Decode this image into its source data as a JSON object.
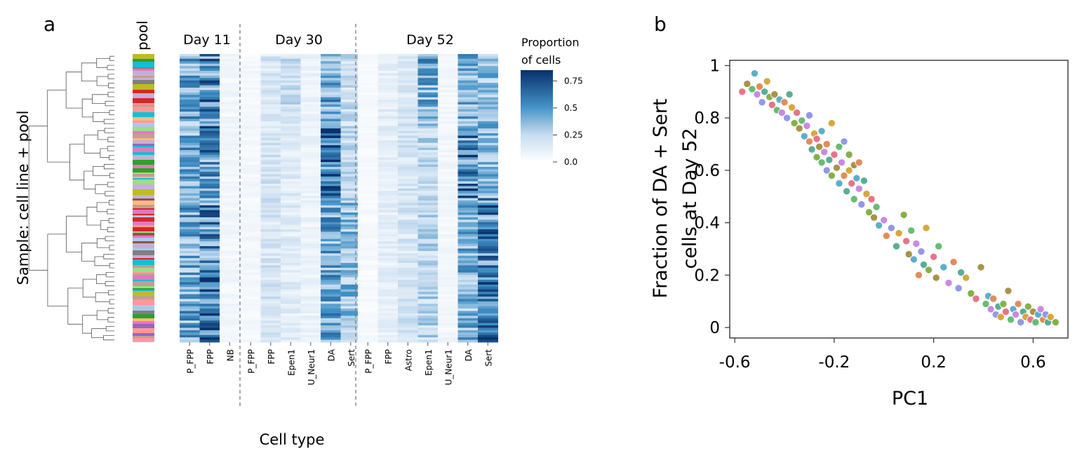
{
  "panel_a": {
    "letter": "a",
    "pool_label": "pool",
    "y_label": "Sample: cell line + pool",
    "x_label": "Cell type",
    "groups": [
      {
        "label": "Day 11",
        "cell_types": [
          "P_FPP",
          "FPP",
          "NB"
        ]
      },
      {
        "label": "Day 30",
        "cell_types": [
          "P_FPP",
          "FPP",
          "Epen1",
          "U_Neur1",
          "DA",
          "Sert"
        ]
      },
      {
        "label": "Day 52",
        "cell_types": [
          "P_FPP",
          "FPP",
          "Astro",
          "Epen1",
          "U_Neur1",
          "DA",
          "Sert"
        ]
      }
    ],
    "legend": {
      "title_line1": "Proportion",
      "title_line2": "of cells",
      "ticks": [
        "0.75",
        "0.5",
        "0.25",
        "0.0"
      ],
      "tick_values": [
        0.75,
        0.5,
        0.25,
        0.0
      ],
      "max": 0.85,
      "color_low": "#ffffff",
      "color_high": "#08306b"
    },
    "pool_colors": [
      "#d62728",
      "#9467bd",
      "#2ca02c",
      "#ff9896",
      "#98df8a",
      "#c49c94",
      "#e377c2",
      "#bcbd22",
      "#aec7e8",
      "#ffbb78",
      "#8c564b",
      "#c5b0d5",
      "#17becf",
      "#7f7f7f"
    ]
  },
  "chart_data": [
    {
      "type": "heatmap",
      "rows": 120,
      "columns": [
        "Day 11 P_FPP",
        "Day 11 FPP",
        "Day 11 NB",
        "Day 30 P_FPP",
        "Day 30 FPP",
        "Day 30 Epen1",
        "Day 30 U_Neur1",
        "Day 30 DA",
        "Day 30 Sert",
        "Day 52 P_FPP",
        "Day 52 FPP",
        "Day 52 Astro",
        "Day 52 Epen1",
        "Day 52 U_Neur1",
        "Day 52 DA",
        "Day 52 Sert"
      ],
      "column_mean_proportion": [
        0.42,
        0.55,
        0.06,
        0.05,
        0.18,
        0.14,
        0.09,
        0.42,
        0.22,
        0.04,
        0.12,
        0.18,
        0.26,
        0.06,
        0.38,
        0.35
      ],
      "colorbar_range": [
        0.0,
        0.85
      ],
      "xlabel": "Cell type",
      "ylabel": "Sample: cell line + pool"
    },
    {
      "type": "scatter",
      "letter": "b",
      "xlabel": "PC1",
      "ylabel_line1": "Fraction of DA + Sert",
      "ylabel_line2": "cells at Day 52",
      "xlim": [
        -0.62,
        0.74
      ],
      "ylim": [
        -0.04,
        1.02
      ],
      "x_ticks": [
        -0.6,
        -0.2,
        0.2,
        0.6
      ],
      "x_tick_labels": [
        "-0.6",
        "-0.2",
        "0.2",
        "0.6"
      ],
      "y_ticks": [
        0,
        0.2,
        0.4,
        0.6,
        0.8,
        1
      ],
      "y_tick_labels": [
        "0",
        "0.2",
        "0.4",
        "0.6",
        "0.8",
        "1"
      ],
      "point_colors": [
        "#e7697f",
        "#a08c3a",
        "#5bb868",
        "#4fa9c6",
        "#c77fe0",
        "#e0834f",
        "#8a90e6",
        "#4aa88f",
        "#d3a12e",
        "#7cab3a"
      ],
      "points": [
        [
          -0.57,
          0.9
        ],
        [
          -0.55,
          0.93
        ],
        [
          -0.53,
          0.91
        ],
        [
          -0.52,
          0.97
        ],
        [
          -0.51,
          0.89
        ],
        [
          -0.5,
          0.92
        ],
        [
          -0.49,
          0.86
        ],
        [
          -0.48,
          0.9
        ],
        [
          -0.47,
          0.94
        ],
        [
          -0.46,
          0.88
        ],
        [
          -0.45,
          0.85
        ],
        [
          -0.44,
          0.89
        ],
        [
          -0.43,
          0.83
        ],
        [
          -0.42,
          0.87
        ],
        [
          -0.41,
          0.82
        ],
        [
          -0.4,
          0.86
        ],
        [
          -0.39,
          0.8
        ],
        [
          -0.38,
          0.89
        ],
        [
          -0.37,
          0.84
        ],
        [
          -0.36,
          0.78
        ],
        [
          -0.35,
          0.82
        ],
        [
          -0.34,
          0.76
        ],
        [
          -0.33,
          0.79
        ],
        [
          -0.32,
          0.73
        ],
        [
          -0.31,
          0.77
        ],
        [
          -0.3,
          0.71
        ],
        [
          -0.3,
          0.81
        ],
        [
          -0.29,
          0.68
        ],
        [
          -0.28,
          0.74
        ],
        [
          -0.27,
          0.65
        ],
        [
          -0.27,
          0.72
        ],
        [
          -0.26,
          0.69
        ],
        [
          -0.25,
          0.63
        ],
        [
          -0.25,
          0.75
        ],
        [
          -0.24,
          0.67
        ],
        [
          -0.23,
          0.7
        ],
        [
          -0.23,
          0.6
        ],
        [
          -0.22,
          0.64
        ],
        [
          -0.21,
          0.78
        ],
        [
          -0.21,
          0.58
        ],
        [
          -0.2,
          0.66
        ],
        [
          -0.19,
          0.61
        ],
        [
          -0.18,
          0.69
        ],
        [
          -0.18,
          0.55
        ],
        [
          -0.17,
          0.63
        ],
        [
          -0.16,
          0.58
        ],
        [
          -0.16,
          0.71
        ],
        [
          -0.15,
          0.52
        ],
        [
          -0.14,
          0.6
        ],
        [
          -0.14,
          0.66
        ],
        [
          -0.13,
          0.55
        ],
        [
          -0.12,
          0.62
        ],
        [
          -0.12,
          0.49
        ],
        [
          -0.11,
          0.57
        ],
        [
          -0.1,
          0.53
        ],
        [
          -0.1,
          0.63
        ],
        [
          -0.09,
          0.47
        ],
        [
          -0.08,
          0.56
        ],
        [
          -0.07,
          0.51
        ],
        [
          -0.06,
          0.44
        ],
        [
          -0.05,
          0.49
        ],
        [
          -0.04,
          0.42
        ],
        [
          -0.03,
          0.46
        ],
        [
          -0.02,
          0.39
        ],
        [
          0.0,
          0.41
        ],
        [
          0.01,
          0.35
        ],
        [
          0.03,
          0.38
        ],
        [
          0.05,
          0.31
        ],
        [
          0.06,
          0.36
        ],
        [
          0.08,
          0.43
        ],
        [
          0.09,
          0.33
        ],
        [
          0.1,
          0.28
        ],
        [
          0.11,
          0.37
        ],
        [
          0.12,
          0.26
        ],
        [
          0.13,
          0.32
        ],
        [
          0.14,
          0.2
        ],
        [
          0.15,
          0.29
        ],
        [
          0.16,
          0.24
        ],
        [
          0.17,
          0.38
        ],
        [
          0.18,
          0.22
        ],
        [
          0.2,
          0.27
        ],
        [
          0.21,
          0.19
        ],
        [
          0.22,
          0.31
        ],
        [
          0.24,
          0.23
        ],
        [
          0.26,
          0.17
        ],
        [
          0.28,
          0.25
        ],
        [
          0.3,
          0.15
        ],
        [
          0.31,
          0.21
        ],
        [
          0.33,
          0.19
        ],
        [
          0.35,
          0.13
        ],
        [
          0.37,
          0.11
        ],
        [
          0.39,
          0.23
        ],
        [
          0.41,
          0.09
        ],
        [
          0.42,
          0.12
        ],
        [
          0.43,
          0.07
        ],
        [
          0.44,
          0.11
        ],
        [
          0.45,
          0.05
        ],
        [
          0.46,
          0.08
        ],
        [
          0.47,
          0.04
        ],
        [
          0.48,
          0.09
        ],
        [
          0.49,
          0.06
        ],
        [
          0.5,
          0.14
        ],
        [
          0.51,
          0.03
        ],
        [
          0.52,
          0.07
        ],
        [
          0.53,
          0.05
        ],
        [
          0.54,
          0.09
        ],
        [
          0.55,
          0.02
        ],
        [
          0.56,
          0.06
        ],
        [
          0.57,
          0.04
        ],
        [
          0.58,
          0.08
        ],
        [
          0.59,
          0.03
        ],
        [
          0.6,
          0.06
        ],
        [
          0.61,
          0.02
        ],
        [
          0.62,
          0.05
        ],
        [
          0.63,
          0.07
        ],
        [
          0.64,
          0.03
        ],
        [
          0.65,
          0.05
        ],
        [
          0.66,
          0.02
        ],
        [
          0.67,
          0.04
        ],
        [
          0.69,
          0.02
        ]
      ]
    }
  ]
}
